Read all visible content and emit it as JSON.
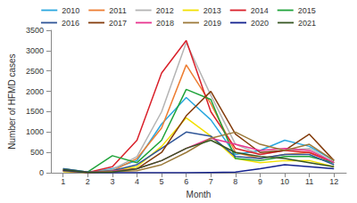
{
  "chart_data": {
    "type": "line",
    "x_label": "Month",
    "y_label": "Number of HFMD cases",
    "categories": [
      "1",
      "2",
      "3",
      "4",
      "5",
      "6",
      "7",
      "8",
      "9",
      "10",
      "11",
      "12"
    ],
    "ylim": [
      0,
      3500
    ],
    "yticks": [
      0,
      500,
      1000,
      1500,
      2000,
      2500,
      3000,
      3500
    ],
    "grid": false,
    "legend": "top",
    "series": [
      {
        "name": "2010",
        "color": "#2aa7df",
        "values": [
          50,
          10,
          100,
          300,
          1200,
          1850,
          1300,
          450,
          550,
          800,
          650,
          300
        ]
      },
      {
        "name": "2011",
        "color": "#ed7d31",
        "values": [
          60,
          10,
          50,
          350,
          1100,
          2650,
          1700,
          500,
          350,
          450,
          500,
          250
        ]
      },
      {
        "name": "2012",
        "color": "#b4b4b4",
        "values": [
          50,
          10,
          80,
          400,
          1500,
          3200,
          1900,
          700,
          450,
          550,
          600,
          250
        ]
      },
      {
        "name": "2013",
        "color": "#f2e000",
        "values": [
          30,
          10,
          50,
          150,
          650,
          1350,
          900,
          350,
          250,
          300,
          300,
          150
        ]
      },
      {
        "name": "2014",
        "color": "#d9202a",
        "values": [
          80,
          10,
          150,
          800,
          2450,
          3250,
          1500,
          600,
          450,
          550,
          500,
          250
        ]
      },
      {
        "name": "2015",
        "color": "#1fa33a",
        "values": [
          100,
          20,
          420,
          250,
          800,
          2050,
          1800,
          350,
          300,
          400,
          400,
          250
        ]
      },
      {
        "name": "2016",
        "color": "#2f5597",
        "values": [
          100,
          20,
          50,
          200,
          600,
          1000,
          900,
          400,
          350,
          450,
          450,
          200
        ]
      },
      {
        "name": "2017",
        "color": "#843c0c",
        "values": [
          50,
          10,
          30,
          100,
          500,
          1400,
          2000,
          950,
          500,
          550,
          950,
          300
        ]
      },
      {
        "name": "2018",
        "color": "#e8358f",
        "values": [
          50,
          10,
          40,
          100,
          300,
          600,
          850,
          700,
          550,
          600,
          550,
          250
        ]
      },
      {
        "name": "2019",
        "color": "#9c7a3a",
        "values": [
          40,
          10,
          30,
          50,
          200,
          500,
          850,
          1000,
          700,
          550,
          700,
          300
        ]
      },
      {
        "name": "2020",
        "color": "#14228f",
        "values": [
          60,
          10,
          0,
          0,
          0,
          0,
          10,
          20,
          100,
          200,
          150,
          100
        ]
      },
      {
        "name": "2021",
        "color": "#375623",
        "values": [
          80,
          10,
          20,
          100,
          300,
          600,
          800,
          500,
          400,
          350,
          250,
          150
        ]
      }
    ]
  }
}
